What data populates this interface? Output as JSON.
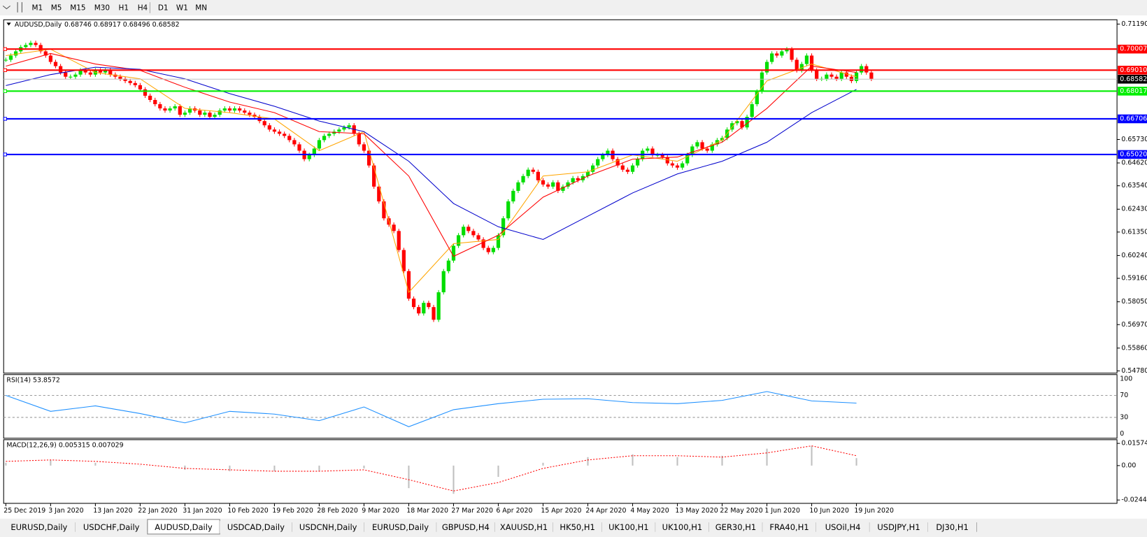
{
  "toolbar": {
    "timeframes": [
      "M1",
      "M5",
      "M15",
      "M30",
      "H1",
      "H4",
      "D1",
      "W1",
      "MN"
    ]
  },
  "main": {
    "header": "AUDUSD,Daily",
    "quote": "0.68746 0.68917 0.68496 0.68582",
    "ylim": [
      0.5471,
      0.7136
    ],
    "yticks": [
      {
        "value": 0.7119,
        "label": "0.71190"
      },
      {
        "value": 0.6573,
        "label": "0.65730"
      },
      {
        "value": 0.6462,
        "label": "0.64620"
      },
      {
        "value": 0.6354,
        "label": "0.63540"
      },
      {
        "value": 0.6243,
        "label": "0.62430"
      },
      {
        "value": 0.6135,
        "label": "0.61350"
      },
      {
        "value": 0.6024,
        "label": "0.60240"
      },
      {
        "value": 0.5916,
        "label": "0.59160"
      },
      {
        "value": 0.5805,
        "label": "0.58050"
      },
      {
        "value": 0.5697,
        "label": "0.56970"
      },
      {
        "value": 0.5586,
        "label": "0.55860"
      },
      {
        "value": 0.5478,
        "label": "0.54780"
      }
    ],
    "levels": [
      {
        "value": 0.70007,
        "label": "0.70007",
        "color": "#ff0000"
      },
      {
        "value": 0.6901,
        "label": "0.69010",
        "color": "#ff0000"
      },
      {
        "value": 0.68017,
        "label": "0.68017",
        "color": "#00ee00"
      },
      {
        "value": 0.66706,
        "label": "0.66706",
        "color": "#0000ff"
      },
      {
        "value": 0.6502,
        "label": "0.65020",
        "color": "#0000ff"
      }
    ],
    "current": {
      "value": 0.68582,
      "label": "0.68582"
    },
    "closes": [
      0.695,
      0.697,
      0.699,
      0.701,
      0.702,
      0.703,
      0.702,
      0.699,
      0.697,
      0.694,
      0.692,
      0.689,
      0.687,
      0.687,
      0.688,
      0.69,
      0.689,
      0.688,
      0.69,
      0.689,
      0.69,
      0.688,
      0.687,
      0.686,
      0.685,
      0.684,
      0.683,
      0.681,
      0.678,
      0.676,
      0.674,
      0.672,
      0.671,
      0.672,
      0.673,
      0.669,
      0.67,
      0.672,
      0.671,
      0.669,
      0.67,
      0.668,
      0.669,
      0.671,
      0.672,
      0.671,
      0.672,
      0.671,
      0.67,
      0.669,
      0.668,
      0.666,
      0.664,
      0.662,
      0.661,
      0.66,
      0.659,
      0.657,
      0.655,
      0.652,
      0.648,
      0.65,
      0.653,
      0.657,
      0.659,
      0.66,
      0.661,
      0.662,
      0.663,
      0.664,
      0.66,
      0.655,
      0.652,
      0.645,
      0.635,
      0.628,
      0.62,
      0.617,
      0.614,
      0.605,
      0.595,
      0.582,
      0.578,
      0.575,
      0.58,
      0.578,
      0.572,
      0.585,
      0.595,
      0.6,
      0.607,
      0.612,
      0.616,
      0.614,
      0.612,
      0.61,
      0.606,
      0.604,
      0.606,
      0.612,
      0.62,
      0.628,
      0.633,
      0.637,
      0.64,
      0.643,
      0.642,
      0.638,
      0.636,
      0.635,
      0.637,
      0.633,
      0.635,
      0.637,
      0.639,
      0.638,
      0.64,
      0.642,
      0.645,
      0.648,
      0.65,
      0.652,
      0.648,
      0.645,
      0.643,
      0.642,
      0.645,
      0.648,
      0.652,
      0.653,
      0.65,
      0.65,
      0.649,
      0.646,
      0.645,
      0.644,
      0.646,
      0.65,
      0.654,
      0.656,
      0.653,
      0.652,
      0.655,
      0.657,
      0.658,
      0.662,
      0.665,
      0.666,
      0.663,
      0.668,
      0.674,
      0.68,
      0.689,
      0.694,
      0.698,
      0.697,
      0.699,
      0.7,
      0.695,
      0.69,
      0.693,
      0.697,
      0.69,
      0.686,
      0.686,
      0.688,
      0.687,
      0.686,
      0.689,
      0.687,
      0.685,
      0.689,
      0.692,
      0.689,
      0.686
    ],
    "up_color": "#00dd00",
    "down_color": "#ff0000",
    "dates": [
      "25 Dec 2019",
      "3 Jan 2020",
      "13 Jan 2020",
      "22 Jan 2020",
      "31 Jan 2020",
      "10 Feb 2020",
      "19 Feb 2020",
      "28 Feb 2020",
      "9 Mar 2020",
      "18 Mar 2020",
      "27 Mar 2020",
      "6 Apr 2020",
      "15 Apr 2020",
      "24 Apr 2020",
      "4 May 2020",
      "13 May 2020",
      "22 May 2020",
      "1 Jun 2020",
      "10 Jun 2020",
      "19 Jun 2020"
    ],
    "ma": [
      {
        "color": "#ffa500",
        "values": [
          0.697,
          0.7,
          0.689,
          0.686,
          0.672,
          0.67,
          0.667,
          0.652,
          0.661,
          0.585,
          0.608,
          0.61,
          0.64,
          0.642,
          0.65,
          0.647,
          0.657,
          0.685,
          0.693,
          0.687
        ]
      },
      {
        "color": "#ff0000",
        "values": [
          0.692,
          0.698,
          0.693,
          0.69,
          0.682,
          0.675,
          0.67,
          0.661,
          0.66,
          0.64,
          0.602,
          0.612,
          0.63,
          0.64,
          0.648,
          0.649,
          0.656,
          0.672,
          0.692,
          0.689
        ]
      },
      {
        "color": "#0000cc",
        "values": [
          0.6828,
          0.688,
          0.6915,
          0.6905,
          0.686,
          0.679,
          0.673,
          0.666,
          0.661,
          0.647,
          0.627,
          0.616,
          0.61,
          0.621,
          0.632,
          0.641,
          0.647,
          0.656,
          0.67,
          0.681
        ]
      }
    ]
  },
  "rsi": {
    "title": "RSI(14) 53.8572",
    "ylim": [
      0,
      100
    ],
    "yticks": [
      100,
      70,
      30,
      0
    ],
    "levels": [
      70,
      30
    ],
    "color": "#1e90ff",
    "values": [
      70,
      41,
      51,
      37,
      20,
      41,
      36,
      24,
      49,
      13,
      44,
      55,
      63,
      64,
      57,
      55,
      61,
      77,
      60,
      56
    ]
  },
  "macd": {
    "title": "MACD(12,26,9) 0.005315 0.007029",
    "ylim": [
      -0.02677,
      0.01784
    ],
    "yticks": [
      0.015741,
      {
        "value": 0,
        "label": "0.00"
      },
      -0.024413
    ],
    "histogram": [
      0.002,
      0.004,
      0.002,
      0.0,
      -0.003,
      -0.004,
      -0.004,
      -0.004,
      -0.002,
      -0.016,
      -0.02,
      -0.008,
      0.002,
      0.006,
      0.008,
      0.006,
      0.007,
      0.012,
      0.014,
      0.0053
    ],
    "signal": [
      0.003,
      0.004,
      0.003,
      0.001,
      -0.002,
      -0.003,
      -0.004,
      -0.004,
      -0.003,
      -0.01,
      -0.018,
      -0.012,
      -0.002,
      0.004,
      0.007,
      0.007,
      0.006,
      0.009,
      0.014,
      0.007
    ],
    "histogram_color": "#c0c0c0",
    "signal_color": "#ff0000"
  },
  "tabs": {
    "items": [
      "EURUSD,Daily",
      "USDCHF,Daily",
      "AUDUSD,Daily",
      "USDCAD,Daily",
      "USDCNH,Daily",
      "EURUSD,Daily",
      "GBPUSD,H4",
      "XAUUSD,H1",
      "HK50,H1",
      "UK100,H1",
      "UK100,H1",
      "GER30,H1",
      "FRA40,H1",
      "USOil,H4",
      "USDJPY,H1",
      "DJ30,H1"
    ],
    "active": 2
  }
}
